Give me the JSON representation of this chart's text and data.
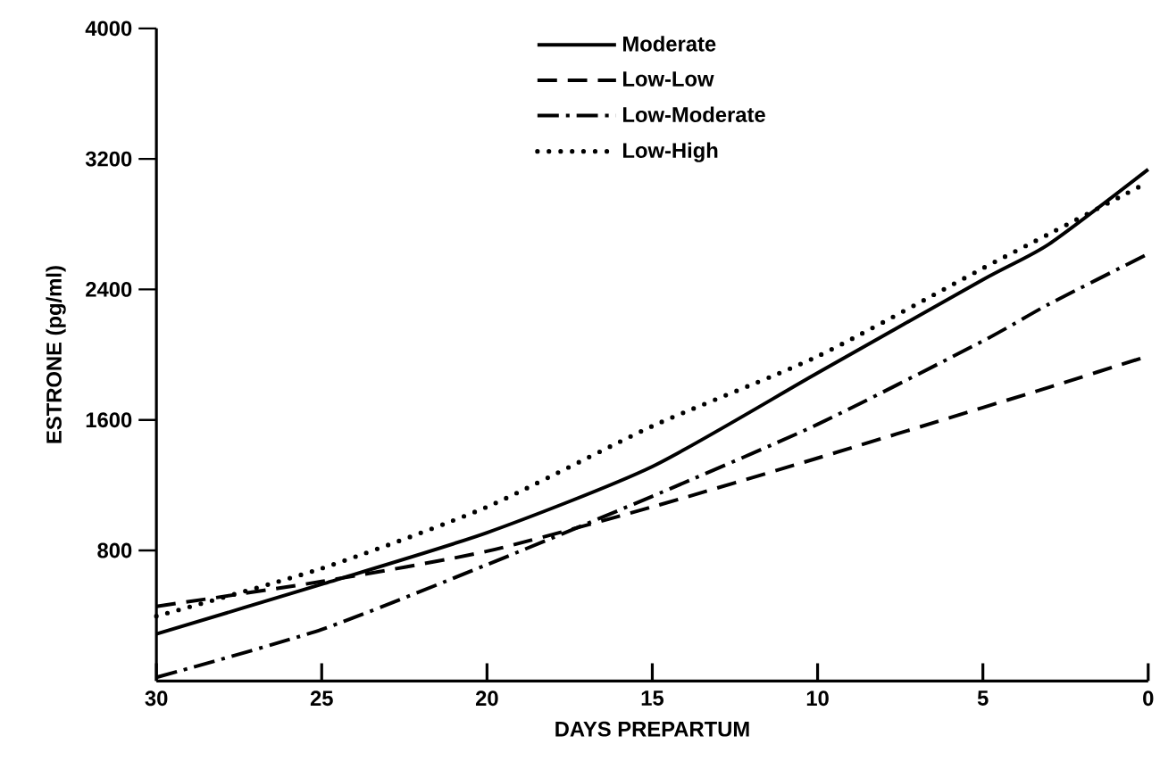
{
  "chart_data": {
    "type": "line",
    "xlabel": "DAYS PREPARTUM",
    "ylabel": "ESTRONE (pg/ml)",
    "x": [
      30,
      25,
      20,
      15,
      10,
      5,
      3,
      0
    ],
    "series": [
      {
        "name": "Moderate",
        "color": "#000000",
        "line_style": "solid",
        "values": [
          288,
          593,
          909,
          1314,
          1888,
          2460,
          2678,
          3136
        ]
      },
      {
        "name": "Low-Low",
        "color": "#000000",
        "line_style": "dashed",
        "values": [
          457,
          610,
          795,
          1067,
          1366,
          1676,
          1800,
          1992
        ]
      },
      {
        "name": "Low-Moderate",
        "color": "#000000",
        "line_style": "dashdot",
        "values": [
          22,
          316,
          713,
          1132,
          1573,
          2084,
          2310,
          2618
        ]
      },
      {
        "name": "Low-High",
        "color": "#000000",
        "line_style": "dotted",
        "values": [
          397,
          690,
          1067,
          1562,
          1990,
          2530,
          2740,
          3058
        ]
      }
    ],
    "xlim": [
      30,
      0
    ],
    "ylim": [
      0,
      4000
    ],
    "xticks": [
      30,
      25,
      20,
      15,
      10,
      5,
      0
    ],
    "yticks": [
      800,
      1600,
      2400,
      3200,
      4000
    ],
    "grid": false,
    "legend": "top",
    "marker": "none"
  }
}
